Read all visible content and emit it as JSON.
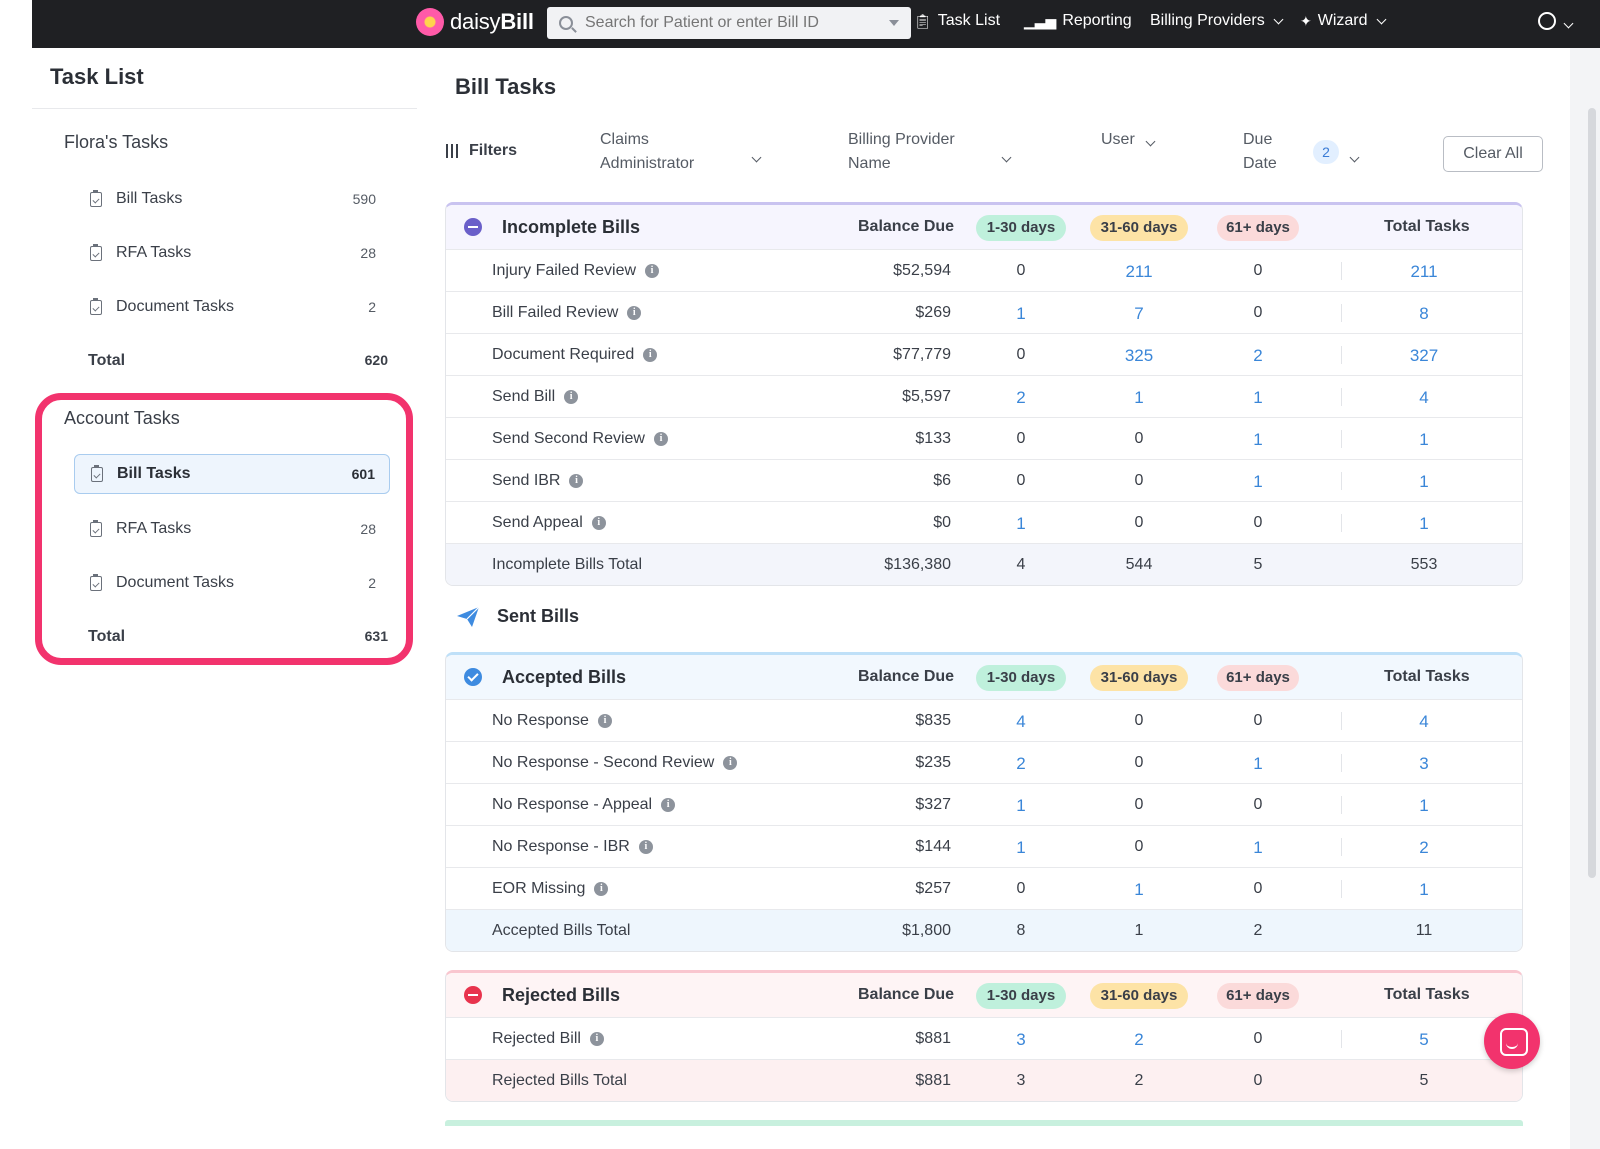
{
  "brand": {
    "name_light": "daisy",
    "name_bold": "Bill"
  },
  "search": {
    "placeholder": "Search for Patient or enter Bill ID"
  },
  "nav": {
    "task_list": "Task List",
    "reporting": "Reporting",
    "billing_providers": "Billing Providers",
    "wizard": "Wizard"
  },
  "sidebar": {
    "title": "Task List",
    "personal": {
      "title": "Flora's Tasks",
      "items": [
        {
          "label": "Bill Tasks",
          "count": "590"
        },
        {
          "label": "RFA Tasks",
          "count": "28"
        },
        {
          "label": "Document Tasks",
          "count": "2"
        }
      ],
      "total_label": "Total",
      "total": "620"
    },
    "account": {
      "title": "Account Tasks",
      "items": [
        {
          "label": "Bill Tasks",
          "count": "601"
        },
        {
          "label": "RFA Tasks",
          "count": "28"
        },
        {
          "label": "Document Tasks",
          "count": "2"
        }
      ],
      "total_label": "Total",
      "total": "631"
    }
  },
  "main": {
    "title": "Bill Tasks",
    "filters": {
      "label": "Filters",
      "claims_admin_l1": "Claims",
      "claims_admin_l2": "Administrator",
      "provider_l1": "Billing Provider",
      "provider_l2": "Name",
      "user": "User",
      "due_l1": "Due",
      "due_l2": "Date",
      "due_count": "2",
      "clear_all": "Clear All"
    },
    "headers": {
      "balance": "Balance Due",
      "d1": "1-30 days",
      "d2": "31-60 days",
      "d3": "61+ days",
      "total": "Total Tasks"
    },
    "incomplete": {
      "title": "Incomplete Bills",
      "rows": [
        {
          "label": "Injury Failed Review",
          "balance": "$52,594",
          "d1": "0",
          "d2": "211",
          "d3": "0",
          "total": "211"
        },
        {
          "label": "Bill Failed Review",
          "balance": "$269",
          "d1": "1",
          "d2": "7",
          "d3": "0",
          "total": "8"
        },
        {
          "label": "Document Required",
          "balance": "$77,779",
          "d1": "0",
          "d2": "325",
          "d3": "2",
          "total": "327"
        },
        {
          "label": "Send Bill",
          "balance": "$5,597",
          "d1": "2",
          "d2": "1",
          "d3": "1",
          "total": "4"
        },
        {
          "label": "Send Second Review",
          "balance": "$133",
          "d1": "0",
          "d2": "0",
          "d3": "1",
          "total": "1"
        },
        {
          "label": "Send IBR",
          "balance": "$6",
          "d1": "0",
          "d2": "0",
          "d3": "1",
          "total": "1"
        },
        {
          "label": "Send Appeal",
          "balance": "$0",
          "d1": "1",
          "d2": "0",
          "d3": "0",
          "total": "1"
        }
      ],
      "total": {
        "label": "Incomplete Bills Total",
        "balance": "$136,380",
        "d1": "4",
        "d2": "544",
        "d3": "5",
        "total": "553"
      }
    },
    "sent_title": "Sent Bills",
    "accepted": {
      "title": "Accepted Bills",
      "rows": [
        {
          "label": "No Response",
          "balance": "$835",
          "d1": "4",
          "d2": "0",
          "d3": "0",
          "total": "4"
        },
        {
          "label": "No Response - Second Review",
          "balance": "$235",
          "d1": "2",
          "d2": "0",
          "d3": "1",
          "total": "3"
        },
        {
          "label": "No Response - Appeal",
          "balance": "$327",
          "d1": "1",
          "d2": "0",
          "d3": "0",
          "total": "1"
        },
        {
          "label": "No Response - IBR",
          "balance": "$144",
          "d1": "1",
          "d2": "0",
          "d3": "1",
          "total": "2"
        },
        {
          "label": "EOR Missing",
          "balance": "$257",
          "d1": "0",
          "d2": "1",
          "d3": "0",
          "total": "1"
        }
      ],
      "total": {
        "label": "Accepted Bills Total",
        "balance": "$1,800",
        "d1": "8",
        "d2": "1",
        "d3": "2",
        "total": "11"
      }
    },
    "rejected": {
      "title": "Rejected Bills",
      "rows": [
        {
          "label": "Rejected Bill",
          "balance": "$881",
          "d1": "3",
          "d2": "2",
          "d3": "0",
          "total": "5"
        }
      ],
      "total": {
        "label": "Rejected Bills Total",
        "balance": "$881",
        "d1": "3",
        "d2": "2",
        "d3": "0",
        "total": "5"
      }
    }
  },
  "colors": {
    "accent_pink": "#f2336d",
    "link_blue": "#3a86d8",
    "topbar": "#1f2023"
  }
}
